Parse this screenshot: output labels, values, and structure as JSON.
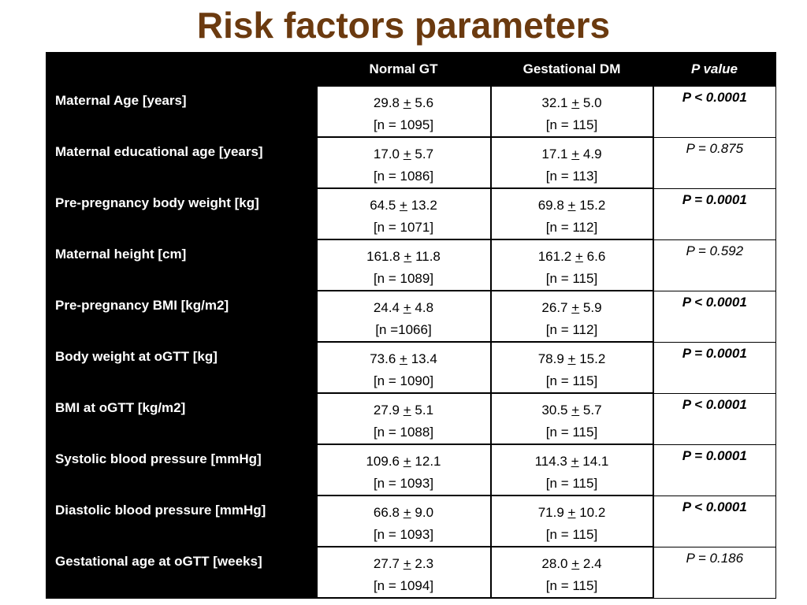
{
  "title": "Risk factors parameters",
  "table": {
    "headers": [
      "",
      "Normal GT",
      "Gestational DM",
      "P value"
    ],
    "pm_symbol": "+",
    "rows": [
      {
        "label": "Maternal Age [years]",
        "normal_mean": "29.8",
        "normal_sd": "5.6",
        "normal_n": "[n = 1095]",
        "gdm_mean": "32.1",
        "gdm_sd": "5.0",
        "gdm_n": "[n = 115]",
        "p": "P < 0.0001",
        "significant": true
      },
      {
        "label": "Maternal educational age [years]",
        "normal_mean": "17.0",
        "normal_sd": "5.7",
        "normal_n": "[n = 1086]",
        "gdm_mean": "17.1",
        "gdm_sd": "4.9",
        "gdm_n": "[n = 113]",
        "p": "P = 0.875",
        "significant": false
      },
      {
        "label": "Pre-pregnancy body weight [kg]",
        "normal_mean": "64.5",
        "normal_sd": "13.2",
        "normal_n": "[n = 1071]",
        "gdm_mean": "69.8",
        "gdm_sd": "15.2",
        "gdm_n": "[n = 112]",
        "p": "P = 0.0001",
        "significant": true
      },
      {
        "label": "Maternal height [cm]",
        "normal_mean": "161.8",
        "normal_sd": "11.8",
        "normal_n": "[n = 1089]",
        "gdm_mean": "161.2",
        "gdm_sd": "6.6",
        "gdm_n": "[n = 115]",
        "p": "P = 0.592",
        "significant": false
      },
      {
        "label": "Pre-pregnancy BMI [kg/m2]",
        "normal_mean": "24.4",
        "normal_sd": "4.8",
        "normal_n": "[n =1066]",
        "gdm_mean": "26.7",
        "gdm_sd": "5.9",
        "gdm_n": "[n = 112]",
        "p": "P < 0.0001",
        "significant": true
      },
      {
        "label": "Body weight at oGTT [kg]",
        "normal_mean": "73.6",
        "normal_sd": "13.4",
        "normal_n": "[n = 1090]",
        "gdm_mean": "78.9",
        "gdm_sd": "15.2",
        "gdm_n": "[n = 115]",
        "p": "P = 0.0001",
        "significant": true
      },
      {
        "label": "BMI at oGTT [kg/m2]",
        "normal_mean": "27.9",
        "normal_sd": "5.1",
        "normal_n": "[n = 1088]",
        "gdm_mean": "30.5",
        "gdm_sd": "5.7",
        "gdm_n": "[n = 115]",
        "p": "P < 0.0001",
        "significant": true
      },
      {
        "label": "Systolic blood pressure [mmHg]",
        "normal_mean": "109.6",
        "normal_sd": "12.1",
        "normal_n": "[n = 1093]",
        "gdm_mean": "114.3",
        "gdm_sd": "14.1",
        "gdm_n": "[n = 115]",
        "p": "P = 0.0001",
        "significant": true
      },
      {
        "label": "Diastolic blood pressure [mmHg]",
        "normal_mean": "66.8",
        "normal_sd": "9.0",
        "normal_n": "[n = 1093]",
        "gdm_mean": "71.9",
        "gdm_sd": "10.2",
        "gdm_n": "[n = 115]",
        "p": "P < 0.0001",
        "significant": true
      },
      {
        "label": "Gestational age at oGTT [weeks]",
        "normal_mean": "27.7",
        "normal_sd": "2.3",
        "normal_n": "[n = 1094]",
        "gdm_mean": "28.0",
        "gdm_sd": "2.4",
        "gdm_n": "[n = 115]",
        "p": "P = 0.186",
        "significant": false
      }
    ]
  },
  "colors": {
    "title": "#6b3a0f",
    "label_bg": "#000000",
    "label_text": "#ffffff",
    "cell_bg": "#ffffff"
  }
}
